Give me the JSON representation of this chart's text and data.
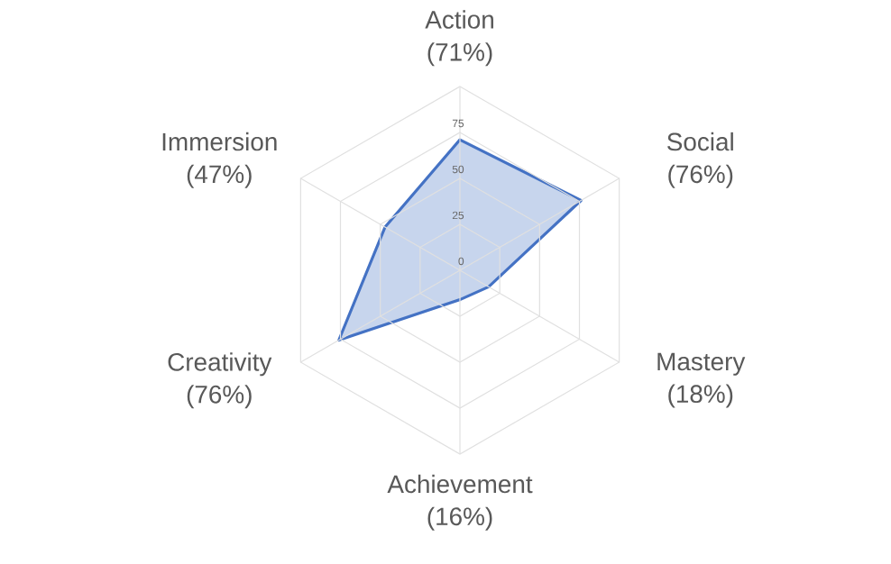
{
  "chart_data": {
    "type": "radar",
    "categories": [
      "Action (71%)",
      "Social (76%)",
      "Mastery (18%)",
      "Achievement (16%)",
      "Creativity (76%)",
      "Immersion (47%)"
    ],
    "series": [
      {
        "color": "#4472c4",
        "values": [
          71,
          76,
          18,
          16,
          76,
          47
        ]
      }
    ],
    "ylim": [
      0,
      100
    ],
    "yticks": [
      0,
      25,
      50,
      75
    ],
    "grid": true
  }
}
